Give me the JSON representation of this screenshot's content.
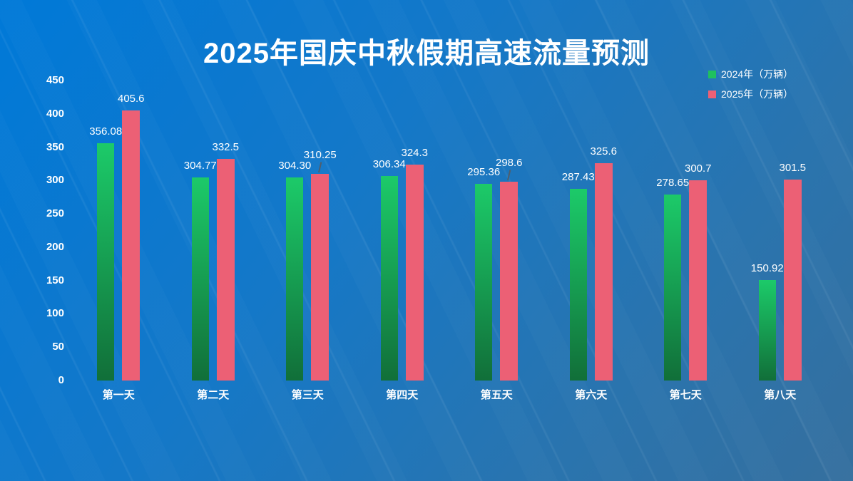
{
  "title": "2025年国庆中秋假期高速流量预测",
  "legend": {
    "items": [
      {
        "label": "2024年（万辆）",
        "color": "#1fc05e"
      },
      {
        "label": "2025年（万辆）",
        "color": "#ec6075"
      }
    ],
    "position": "top-right"
  },
  "chart_data": {
    "type": "bar",
    "title": "2025年国庆中秋假期高速流量预测",
    "categories": [
      "第一天",
      "第二天",
      "第三天",
      "第四天",
      "第五天",
      "第六天",
      "第七天",
      "第八天"
    ],
    "series": [
      {
        "name": "2024年（万辆）",
        "color_top": "#1cca69",
        "color_bottom": "#116f39",
        "values": [
          356.08,
          304.77,
          304.3,
          306.34,
          295.36,
          287.43,
          278.65,
          150.92
        ],
        "labels": [
          "356.08",
          "304.77",
          "304.30",
          "306.34",
          "295.36",
          "287.43",
          "278.65",
          "150.92"
        ]
      },
      {
        "name": "2025年（万辆）",
        "color": "#ec6075",
        "values": [
          405.6,
          332.5,
          310.25,
          324.3,
          298.6,
          325.6,
          300.7,
          301.5
        ],
        "labels": [
          "405.6",
          "332.5",
          "310.25",
          "324.3",
          "298.6",
          "325.6",
          "300.7",
          "301.5"
        ]
      }
    ],
    "ylim": [
      0,
      450
    ],
    "yticks": [
      0,
      50,
      100,
      150,
      200,
      250,
      300,
      350,
      400,
      450
    ],
    "grid": false,
    "legend_position": "top-right",
    "label_callouts": [
      {
        "series": 1,
        "index": 2
      },
      {
        "series": 1,
        "index": 4
      }
    ]
  },
  "colors": {
    "background_top_left": "#0079d8",
    "background_bottom_right": "#356f9e",
    "text": "#ffffff",
    "callout_line": "#515e6b"
  }
}
